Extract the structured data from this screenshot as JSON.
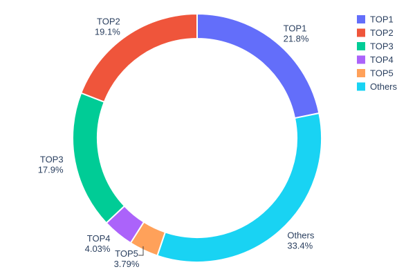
{
  "chart_data": {
    "type": "pie",
    "hole": 0.8,
    "title": "",
    "labels": [
      "TOP1",
      "TOP2",
      "TOP3",
      "TOP4",
      "TOP5",
      "Others"
    ],
    "values": [
      21.8,
      19.1,
      17.9,
      4.03,
      3.79,
      33.4
    ],
    "percent_labels": [
      "21.8%",
      "19.1%",
      "17.9%",
      "4.03%",
      "3.79%",
      "33.4%"
    ],
    "colors": [
      "#636efa",
      "#ef553b",
      "#00cc96",
      "#ab63fa",
      "#ffa15a",
      "#19d3f3"
    ],
    "display_order_clockwise_from_top": [
      "TOP1",
      "Others",
      "TOP5",
      "TOP4",
      "TOP3",
      "TOP2"
    ],
    "legend": {
      "position": "right",
      "items": [
        "TOP1",
        "TOP2",
        "TOP3",
        "TOP4",
        "TOP5",
        "Others"
      ]
    },
    "text_color": "#2a3f5f",
    "leader_line_color": "#444444",
    "background": "#ffffff"
  }
}
